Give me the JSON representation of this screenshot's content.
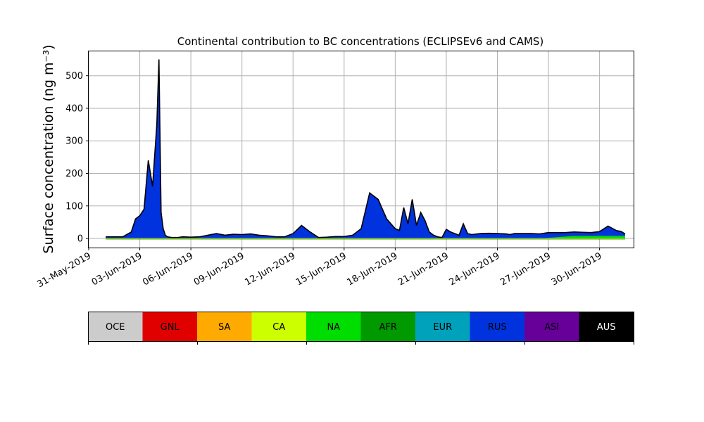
{
  "chart_data": {
    "type": "area",
    "title": "Continental contribution to BC concentrations (ECLIPSEv6 and CAMS)",
    "ylabel": "Surface concentration (ng m⁻³)",
    "xlabel": "",
    "ylim": [
      -28,
      575
    ],
    "xlim": [
      "2019-05-31T00:00",
      "2019-07-02T00:00"
    ],
    "yticks": [
      0,
      100,
      200,
      300,
      400,
      500
    ],
    "xticks": [
      "31-May-2019",
      "03-Jun-2019",
      "06-Jun-2019",
      "09-Jun-2019",
      "12-Jun-2019",
      "15-Jun-2019",
      "18-Jun-2019",
      "21-Jun-2019",
      "24-Jun-2019",
      "27-Jun-2019",
      "30-Jun-2019"
    ],
    "grid": true,
    "x": [
      "2019-06-01T00:00",
      "2019-06-02T00:00",
      "2019-06-02T12:00",
      "2019-06-02T18:00",
      "2019-06-03T00:00",
      "2019-06-03T06:00",
      "2019-06-03T12:00",
      "2019-06-03T18:00",
      "2019-06-04T00:00",
      "2019-06-04T03:00",
      "2019-06-04T06:00",
      "2019-06-04T09:00",
      "2019-06-04T12:00",
      "2019-06-04T15:00",
      "2019-06-04T18:00",
      "2019-06-04T21:00",
      "2019-06-05T00:00",
      "2019-06-05T06:00",
      "2019-06-05T12:00",
      "2019-06-06T00:00",
      "2019-06-06T12:00",
      "2019-06-07T00:00",
      "2019-06-07T12:00",
      "2019-06-08T00:00",
      "2019-06-08T12:00",
      "2019-06-09T00:00",
      "2019-06-09T12:00",
      "2019-06-10T00:00",
      "2019-06-10T12:00",
      "2019-06-11T00:00",
      "2019-06-11T12:00",
      "2019-06-12T00:00",
      "2019-06-12T12:00",
      "2019-06-13T00:00",
      "2019-06-13T12:00",
      "2019-06-14T00:00",
      "2019-06-14T06:00",
      "2019-06-14T12:00",
      "2019-06-15T00:00",
      "2019-06-15T12:00",
      "2019-06-16T00:00",
      "2019-06-16T12:00",
      "2019-06-17T00:00",
      "2019-06-17T12:00",
      "2019-06-18T00:00",
      "2019-06-18T06:00",
      "2019-06-18T12:00",
      "2019-06-18T18:00",
      "2019-06-19T00:00",
      "2019-06-19T06:00",
      "2019-06-19T12:00",
      "2019-06-19T18:00",
      "2019-06-20T00:00",
      "2019-06-20T06:00",
      "2019-06-20T12:00",
      "2019-06-20T18:00",
      "2019-06-21T00:00",
      "2019-06-21T06:00",
      "2019-06-21T12:00",
      "2019-06-21T18:00",
      "2019-06-22T00:00",
      "2019-06-22T06:00",
      "2019-06-22T12:00",
      "2019-06-23T00:00",
      "2019-06-23T12:00",
      "2019-06-24T00:00",
      "2019-06-24T12:00",
      "2019-06-24T18:00",
      "2019-06-25T00:00",
      "2019-06-25T12:00",
      "2019-06-26T00:00",
      "2019-06-26T12:00",
      "2019-06-27T00:00",
      "2019-06-27T12:00",
      "2019-06-28T00:00",
      "2019-06-28T12:00",
      "2019-06-29T00:00",
      "2019-06-29T12:00",
      "2019-06-30T00:00",
      "2019-06-30T12:00",
      "2019-07-01T00:00",
      "2019-07-01T06:00",
      "2019-07-01T12:00"
    ],
    "series": [
      {
        "name": "NA",
        "values": [
          0,
          0,
          0,
          0,
          0,
          0,
          0,
          0,
          0,
          0,
          0,
          0,
          0,
          0,
          0,
          0,
          0,
          0,
          0,
          0,
          0,
          0,
          0,
          0,
          0,
          0,
          0,
          0,
          0,
          0,
          0,
          0,
          0,
          0,
          0,
          0,
          0,
          0,
          0,
          0,
          0,
          0,
          0,
          0,
          0,
          0,
          0,
          0,
          0,
          0,
          0,
          0,
          0,
          0,
          0,
          0,
          0,
          0,
          0,
          0,
          0,
          0,
          0,
          0,
          0,
          0,
          0,
          0,
          0,
          0,
          0,
          0,
          2,
          4,
          6,
          8,
          8,
          8,
          8,
          8,
          8,
          8,
          8
        ]
      },
      {
        "name": "RUS",
        "values": [
          5,
          5,
          20,
          60,
          70,
          90,
          240,
          160,
          350,
          550,
          80,
          30,
          10,
          5,
          4,
          3,
          3,
          3,
          5,
          4,
          5,
          10,
          15,
          10,
          13,
          12,
          14,
          10,
          8,
          5,
          5,
          15,
          40,
          20,
          3,
          4,
          5,
          6,
          6,
          10,
          30,
          140,
          120,
          60,
          30,
          25,
          95,
          45,
          120,
          40,
          80,
          55,
          20,
          10,
          5,
          3,
          28,
          20,
          15,
          10,
          45,
          15,
          12,
          15,
          16,
          15,
          14,
          12,
          15,
          15,
          15,
          12,
          14,
          14,
          12,
          12,
          11,
          10,
          13,
          30,
          16,
          14,
          6
        ]
      },
      {
        "name": "AFR",
        "values": [
          -3,
          -3,
          -3,
          -3,
          -3,
          -3,
          -3,
          -3,
          -3,
          -3,
          -3,
          -3,
          -3,
          -3,
          -3,
          -3,
          -3,
          -3,
          -3,
          -3,
          -3,
          -3,
          -3,
          -3,
          -3,
          -3,
          -3,
          -3,
          -3,
          -3,
          -3,
          -3,
          -3,
          -3,
          -3,
          -3,
          -3,
          -3,
          -3,
          -3,
          -3,
          -3,
          -3,
          -3,
          -3,
          -3,
          -3,
          -3,
          -3,
          -3,
          -3,
          -3,
          -3,
          -3,
          -3,
          -3,
          -3,
          -3,
          -3,
          -3,
          -3,
          -3,
          -3,
          -3,
          -3,
          -3,
          -3,
          -3,
          -3,
          -3,
          -3,
          -3,
          -3,
          -3,
          -3,
          -3,
          -3,
          -3,
          -3,
          -3,
          -3,
          -3,
          -3
        ]
      }
    ],
    "total": [
      5,
      5,
      20,
      60,
      70,
      90,
      240,
      160,
      350,
      550,
      80,
      30,
      10,
      5,
      4,
      3,
      3,
      3,
      5,
      4,
      5,
      10,
      15,
      10,
      13,
      12,
      14,
      10,
      8,
      5,
      5,
      15,
      40,
      20,
      3,
      4,
      5,
      6,
      6,
      10,
      30,
      140,
      120,
      60,
      30,
      25,
      95,
      45,
      120,
      40,
      80,
      55,
      20,
      10,
      5,
      3,
      28,
      20,
      15,
      10,
      45,
      15,
      12,
      15,
      16,
      15,
      14,
      12,
      15,
      15,
      15,
      14,
      18,
      18,
      18,
      20,
      19,
      18,
      21,
      38,
      24,
      22,
      14
    ],
    "legend": {
      "placement": "bottom",
      "entries": [
        {
          "label": "OCE",
          "color": "#cccccc",
          "text_color": "#000000"
        },
        {
          "label": "GNL",
          "color": "#e00000",
          "text_color": "#000000"
        },
        {
          "label": "SA",
          "color": "#ffaa00",
          "text_color": "#000000"
        },
        {
          "label": "CA",
          "color": "#ccff00",
          "text_color": "#000000"
        },
        {
          "label": "NA",
          "color": "#00dd00",
          "text_color": "#000000"
        },
        {
          "label": "AFR",
          "color": "#009900",
          "text_color": "#000000"
        },
        {
          "label": "EUR",
          "color": "#00a2bb",
          "text_color": "#000000"
        },
        {
          "label": "RUS",
          "color": "#0033dd",
          "text_color": "#000000"
        },
        {
          "label": "ASI",
          "color": "#660099",
          "text_color": "#000000"
        },
        {
          "label": "AUS",
          "color": "#000000",
          "text_color": "#ffffff"
        }
      ]
    }
  }
}
